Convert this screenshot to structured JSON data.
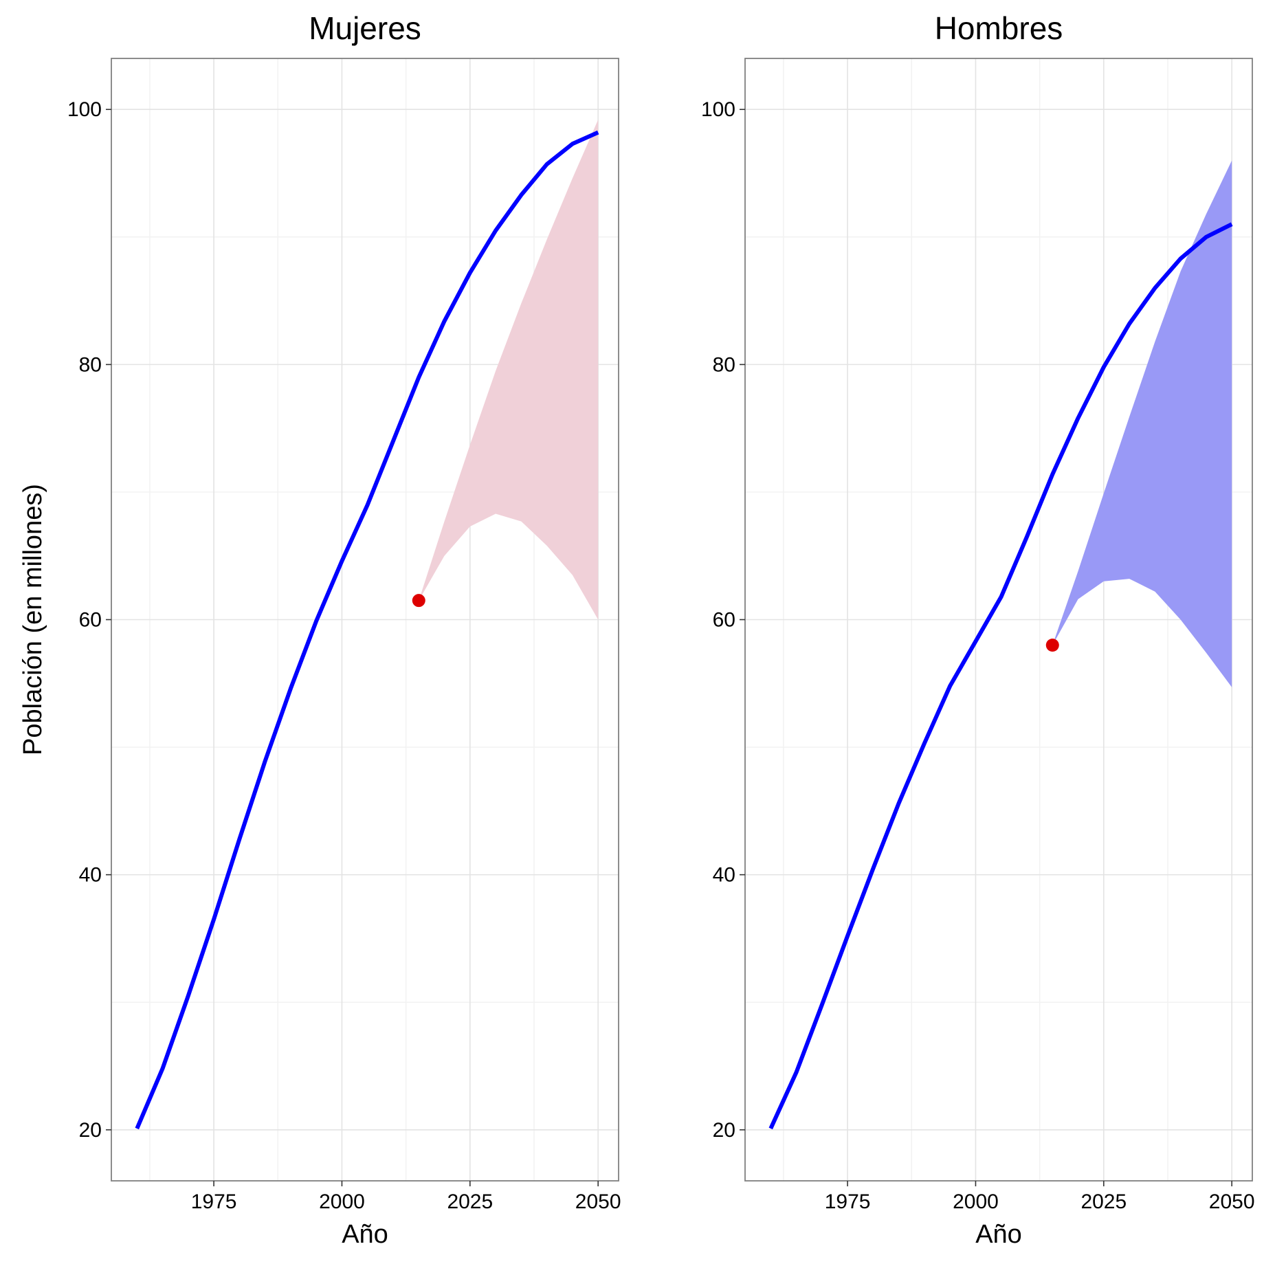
{
  "ylabel": "Población (en millones)",
  "chart_data": [
    {
      "type": "area",
      "title": "Mujeres",
      "xlabel": "Año",
      "ylabel": "Población (en millones)",
      "xlim": [
        1955,
        2054
      ],
      "ylim": [
        16,
        104
      ],
      "xticks": [
        1975,
        2000,
        2025,
        2050
      ],
      "yticks": [
        20,
        40,
        60,
        80,
        100
      ],
      "grid": true,
      "band_color": "#f0d0d8",
      "line_color": "#0000ff",
      "point_color": "#dd0000",
      "series": [
        {
          "kind": "line",
          "x": [
            1960,
            1965,
            1970,
            1975,
            1980,
            1985,
            1990,
            1995,
            2000,
            2005,
            2010,
            2015,
            2020,
            2025,
            2030,
            2035,
            2040,
            2045,
            2050
          ],
          "y": [
            20.1,
            24.8,
            30.5,
            36.5,
            42.8,
            48.9,
            54.6,
            59.9,
            64.6,
            69.0,
            74.0,
            79.0,
            83.4,
            87.2,
            90.5,
            93.3,
            95.7,
            97.3,
            98.2
          ]
        },
        {
          "kind": "band",
          "x": [
            2015,
            2020,
            2025,
            2030,
            2035,
            2040,
            2045,
            2050
          ],
          "lower": [
            61.5,
            65.0,
            67.3,
            68.3,
            67.7,
            65.8,
            63.5,
            60.0
          ],
          "upper": [
            61.5,
            67.7,
            73.7,
            79.5,
            84.8,
            89.8,
            94.6,
            99.2
          ]
        },
        {
          "kind": "point",
          "x": [
            2015
          ],
          "y": [
            61.5
          ]
        }
      ]
    },
    {
      "type": "area",
      "title": "Hombres",
      "xlabel": "Año",
      "ylabel": "",
      "xlim": [
        1955,
        2054
      ],
      "ylim": [
        16,
        104
      ],
      "xticks": [
        1975,
        2000,
        2025,
        2050
      ],
      "yticks": [
        20,
        40,
        60,
        80,
        100
      ],
      "grid": true,
      "band_color": "#9999f6",
      "line_color": "#0000ff",
      "point_color": "#dd0000",
      "series": [
        {
          "kind": "line",
          "x": [
            1960,
            1965,
            1970,
            1975,
            1980,
            1985,
            1990,
            1995,
            2000,
            2005,
            2010,
            2015,
            2020,
            2025,
            2030,
            2035,
            2040,
            2045,
            2050
          ],
          "y": [
            20.1,
            24.5,
            29.8,
            35.2,
            40.5,
            45.6,
            50.3,
            54.8,
            58.3,
            61.8,
            66.5,
            71.4,
            75.8,
            79.8,
            83.2,
            86.0,
            88.3,
            90.0,
            91.0
          ]
        },
        {
          "kind": "band",
          "x": [
            2015,
            2020,
            2025,
            2030,
            2035,
            2040,
            2045,
            2050
          ],
          "lower": [
            58.0,
            61.6,
            63.0,
            63.2,
            62.2,
            60.0,
            57.4,
            54.7
          ],
          "upper": [
            58.0,
            63.8,
            69.9,
            75.9,
            81.8,
            87.3,
            91.8,
            96.0
          ]
        },
        {
          "kind": "point",
          "x": [
            2015
          ],
          "y": [
            58.0
          ]
        }
      ]
    }
  ]
}
